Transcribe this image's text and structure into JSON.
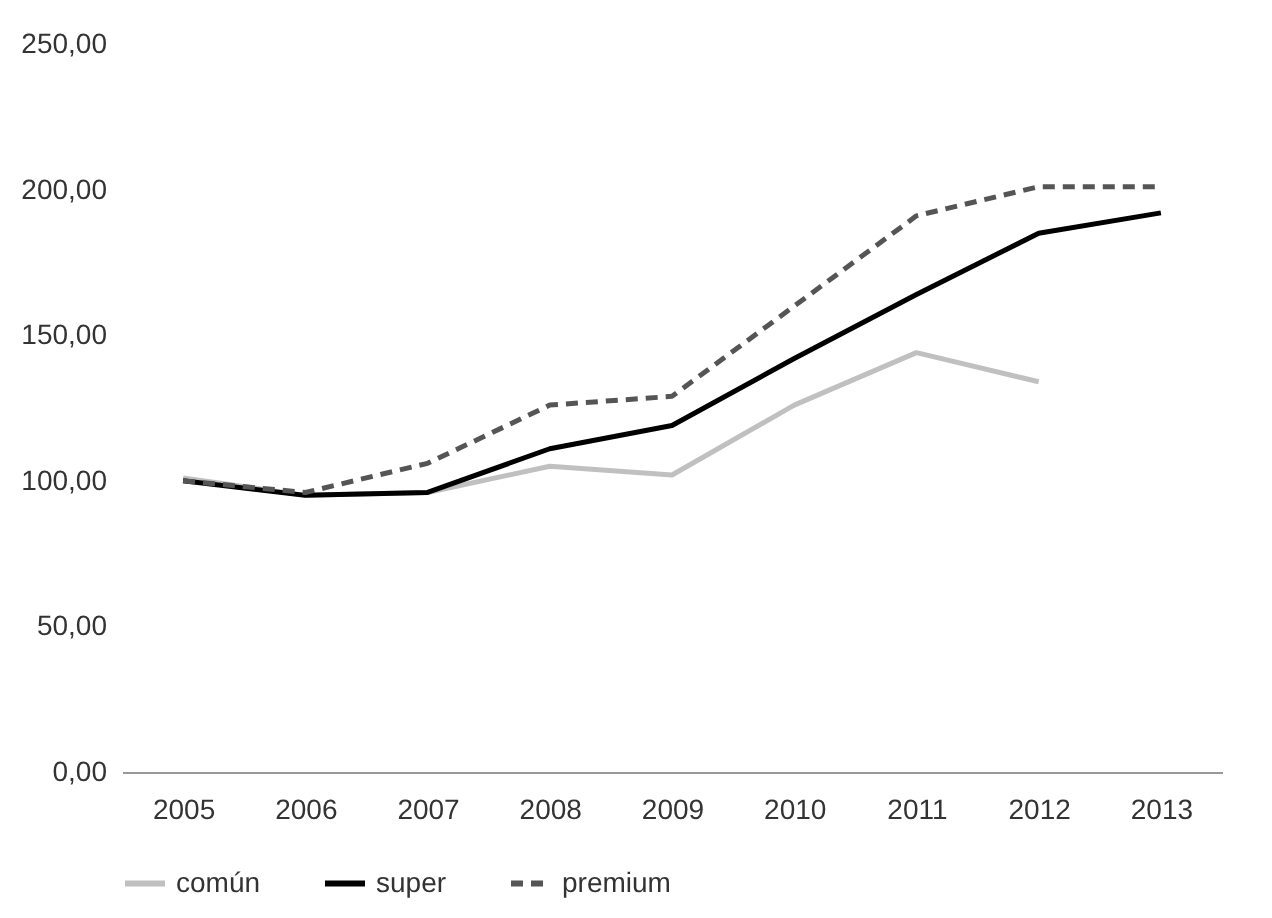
{
  "chart_data": {
    "type": "line",
    "categories": [
      "2005",
      "2006",
      "2007",
      "2008",
      "2009",
      "2010",
      "2011",
      "2012",
      "2013"
    ],
    "series": [
      {
        "name": "común",
        "color": "#c0c0c0",
        "line_style": "solid",
        "values": [
          101,
          95,
          96,
          105,
          102,
          126,
          144,
          134,
          null
        ]
      },
      {
        "name": "super",
        "color": "#000000",
        "line_style": "solid",
        "values": [
          100,
          95,
          96,
          111,
          119,
          142,
          164,
          185,
          192
        ]
      },
      {
        "name": "premium",
        "color": "#555555",
        "line_style": "dashed",
        "values": [
          100,
          96,
          106,
          126,
          129,
          160,
          191,
          201,
          201
        ]
      }
    ],
    "ylim": [
      0,
      250
    ],
    "yticks": [
      {
        "value": 0,
        "label": "0,00"
      },
      {
        "value": 50,
        "label": "50,00"
      },
      {
        "value": 100,
        "label": "100,00"
      },
      {
        "value": 150,
        "label": "150,00"
      },
      {
        "value": 200,
        "label": "200,00"
      },
      {
        "value": 250,
        "label": "250,00"
      }
    ],
    "grid": false,
    "legend": "bottom",
    "marker": "none"
  }
}
